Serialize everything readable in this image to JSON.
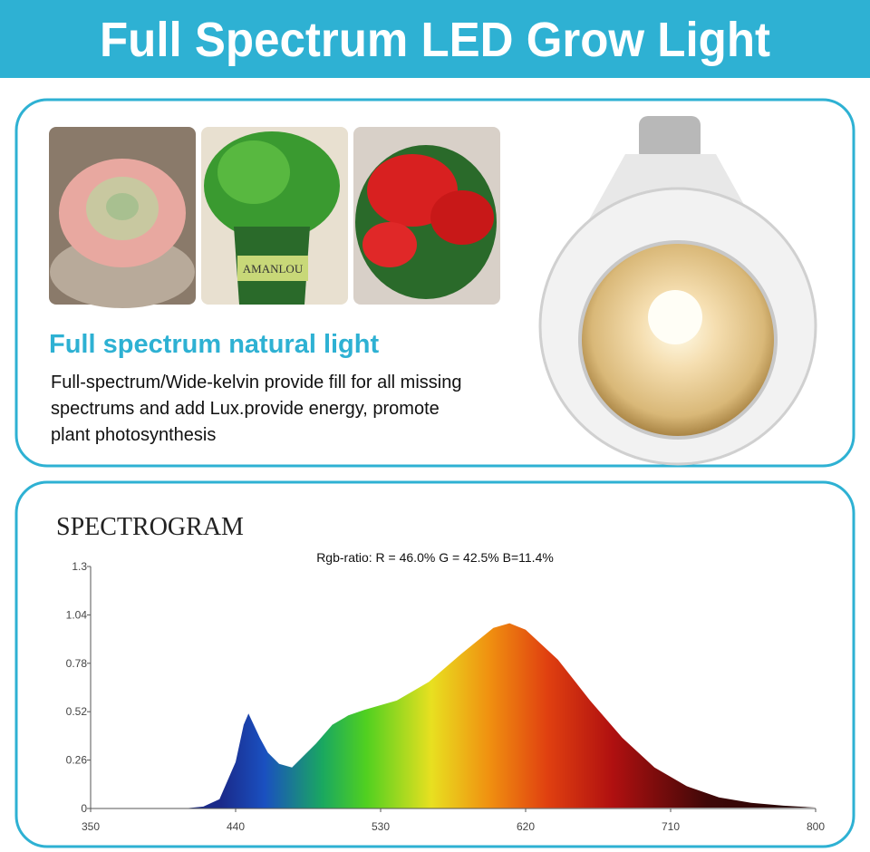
{
  "header": {
    "title": "Full Spectrum LED Grow Light"
  },
  "feature": {
    "heading": "Full spectrum natural light",
    "lines": [
      "Full-spectrum/Wide-kelvin provide fill for all missing",
      "spectrums and add Lux.provide energy, promote",
      "plant photosynthesis"
    ],
    "pot_label": "AMANLOU"
  },
  "chart_data": {
    "type": "area",
    "title": "SPECTROGRAM",
    "annotation": "Rgb-ratio: R = 46.0%  G = 42.5%  B=11.4%",
    "x": [
      350,
      380,
      410,
      420,
      430,
      440,
      445,
      448,
      455,
      460,
      467,
      475,
      490,
      500,
      510,
      520,
      540,
      560,
      580,
      600,
      610,
      620,
      640,
      660,
      680,
      700,
      720,
      740,
      760,
      780,
      800
    ],
    "y": [
      0,
      0,
      0.002,
      0.01,
      0.05,
      0.25,
      0.45,
      0.51,
      0.38,
      0.3,
      0.24,
      0.22,
      0.35,
      0.45,
      0.5,
      0.53,
      0.58,
      0.68,
      0.83,
      0.97,
      0.995,
      0.96,
      0.8,
      0.58,
      0.38,
      0.22,
      0.12,
      0.06,
      0.03,
      0.015,
      0.005
    ],
    "xlim": [
      350,
      800
    ],
    "ylim": [
      0,
      1.3
    ],
    "xticks": [
      350,
      440,
      530,
      620,
      710,
      800
    ],
    "yticks": [
      0,
      0.26,
      0.52,
      0.78,
      1.04,
      1.3
    ]
  }
}
